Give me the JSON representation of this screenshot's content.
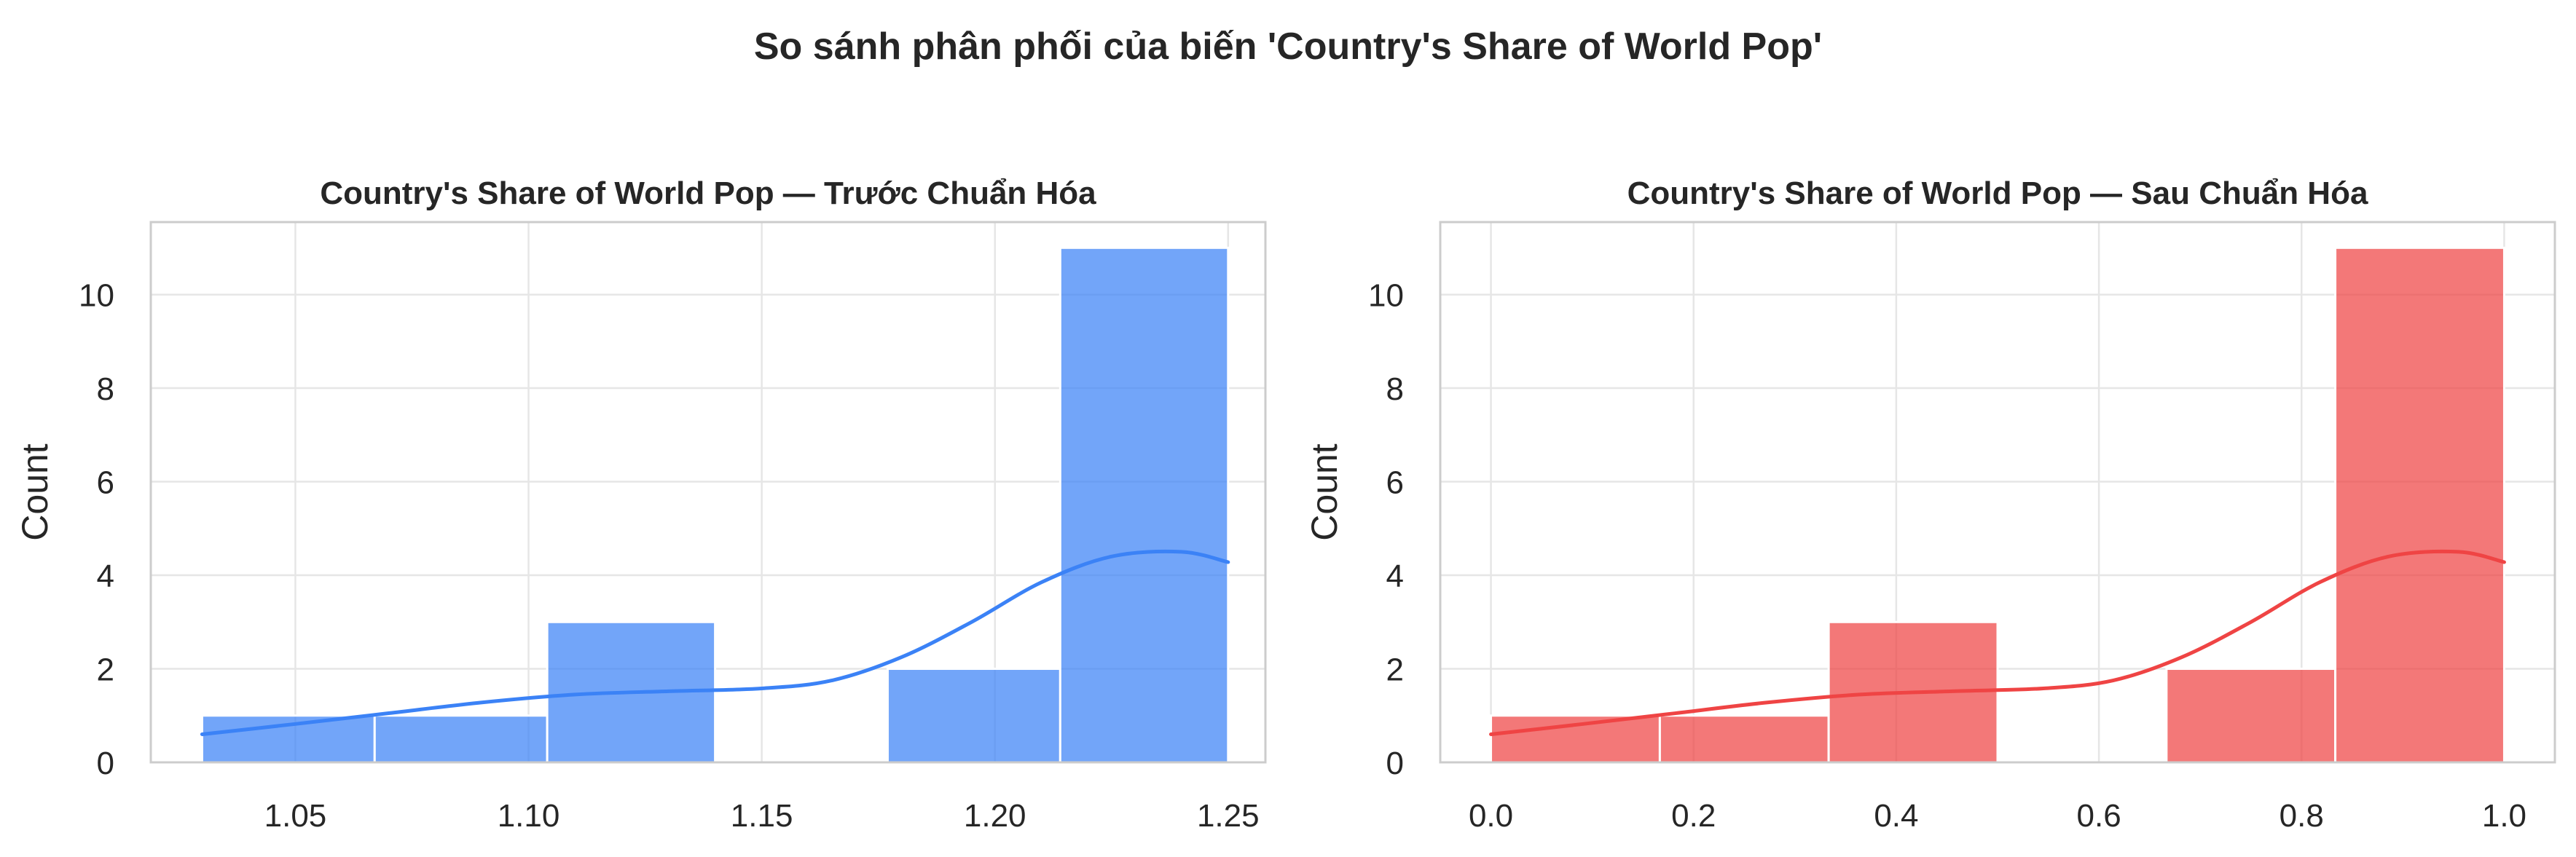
{
  "figure": {
    "title": "So sánh phân phối của biến 'Country's Share of World Pop'"
  },
  "chart_data": [
    {
      "type": "bar",
      "subtype": "histogram-with-kde",
      "title": "Country's Share of World Pop — Trước Chuẩn Hóa",
      "xlabel": "",
      "ylabel": "Count",
      "xlim": [
        1.019,
        1.258
      ],
      "ylim": [
        0,
        11.55
      ],
      "xticks": [
        "1.05",
        "1.10",
        "1.15",
        "1.20",
        "1.25"
      ],
      "xtick_values": [
        1.05,
        1.1,
        1.15,
        1.2,
        1.25
      ],
      "yticks": [
        "0",
        "2",
        "4",
        "6",
        "8",
        "10"
      ],
      "ytick_values": [
        0,
        2,
        4,
        6,
        8,
        10
      ],
      "grid": true,
      "color": "#3b82f6",
      "bins": [
        {
          "x0": 1.03,
          "x1": 1.067,
          "count": 1
        },
        {
          "x0": 1.067,
          "x1": 1.104,
          "count": 1
        },
        {
          "x0": 1.104,
          "x1": 1.14,
          "count": 3
        },
        {
          "x0": 1.14,
          "x1": 1.177,
          "count": 0
        },
        {
          "x0": 1.177,
          "x1": 1.214,
          "count": 2
        },
        {
          "x0": 1.214,
          "x1": 1.25,
          "count": 11
        }
      ],
      "kde": {
        "x": [
          1.03,
          1.05,
          1.07,
          1.09,
          1.11,
          1.13,
          1.15,
          1.165,
          1.18,
          1.195,
          1.21,
          1.225,
          1.24,
          1.25
        ],
        "y": [
          0.6,
          0.82,
          1.05,
          1.28,
          1.45,
          1.52,
          1.58,
          1.75,
          2.25,
          3.0,
          3.85,
          4.4,
          4.5,
          4.28
        ]
      }
    },
    {
      "type": "bar",
      "subtype": "histogram-with-kde",
      "title": "Country's Share of World Pop — Sau Chuẩn Hóa",
      "xlabel": "",
      "ylabel": "Count",
      "xlim": [
        -0.05,
        1.05
      ],
      "ylim": [
        0,
        11.55
      ],
      "xticks": [
        "0.0",
        "0.2",
        "0.4",
        "0.6",
        "0.8",
        "1.0"
      ],
      "xtick_values": [
        0.0,
        0.2,
        0.4,
        0.6,
        0.8,
        1.0
      ],
      "yticks": [
        "0",
        "2",
        "4",
        "6",
        "8",
        "10"
      ],
      "ytick_values": [
        0,
        2,
        4,
        6,
        8,
        10
      ],
      "grid": true,
      "color": "#ef4444",
      "bins": [
        {
          "x0": 0.0,
          "x1": 0.1667,
          "count": 1
        },
        {
          "x0": 0.1667,
          "x1": 0.3333,
          "count": 1
        },
        {
          "x0": 0.3333,
          "x1": 0.5,
          "count": 3
        },
        {
          "x0": 0.5,
          "x1": 0.6667,
          "count": 0
        },
        {
          "x0": 0.6667,
          "x1": 0.8333,
          "count": 2
        },
        {
          "x0": 0.8333,
          "x1": 1.0,
          "count": 11
        }
      ],
      "kde": {
        "x": [
          0.0,
          0.091,
          0.182,
          0.273,
          0.364,
          0.455,
          0.545,
          0.614,
          0.682,
          0.75,
          0.818,
          0.886,
          0.955,
          1.0
        ],
        "y": [
          0.6,
          0.82,
          1.05,
          1.28,
          1.45,
          1.52,
          1.58,
          1.75,
          2.25,
          3.0,
          3.85,
          4.4,
          4.5,
          4.28
        ]
      }
    }
  ]
}
